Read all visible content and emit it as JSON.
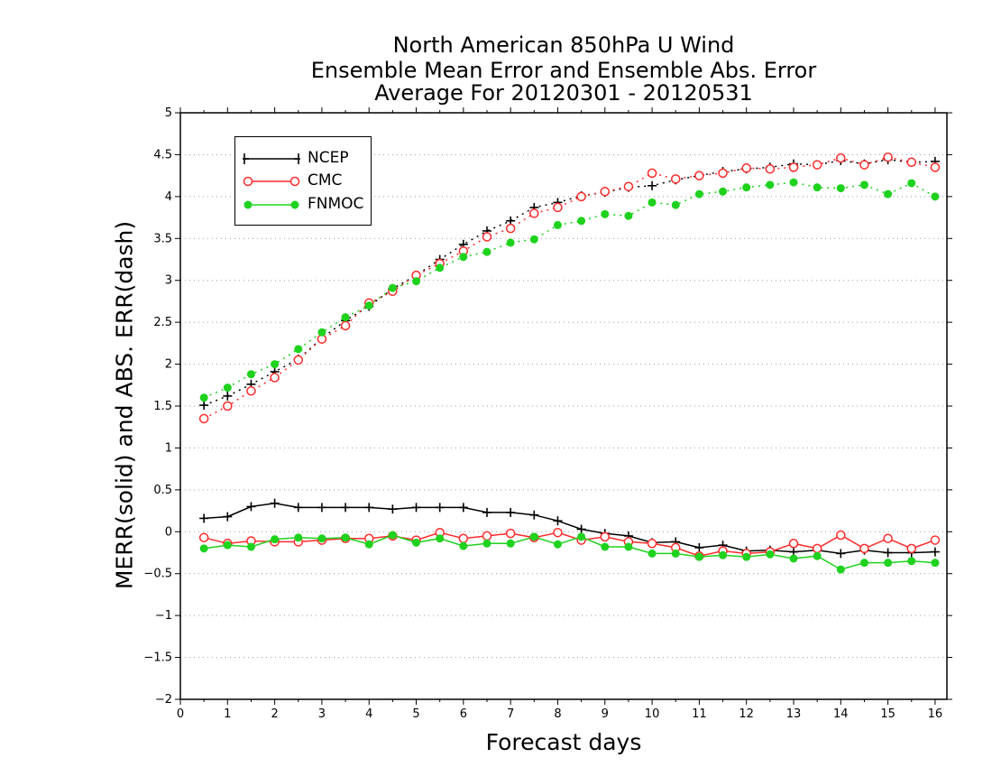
{
  "chart_data": {
    "type": "line",
    "title": [
      "North American 850hPa U Wind",
      "Ensemble Mean Error and Ensemble Abs. Error",
      "Average For 20120301 - 20120531"
    ],
    "xlabel": "Forecast days",
    "ylabel": "MERR(solid) and ABS. ERR(dash)",
    "xlim": [
      0,
      16.25
    ],
    "ylim": [
      -2,
      5
    ],
    "x_ticks": [
      0,
      1,
      2,
      3,
      4,
      5,
      6,
      7,
      8,
      9,
      10,
      11,
      12,
      13,
      14,
      15,
      16
    ],
    "y_ticks": [
      -2,
      -1.5,
      -1,
      -0.5,
      0,
      0.5,
      1,
      1.5,
      2,
      2.5,
      3,
      3.5,
      4,
      4.5,
      5
    ],
    "x_tick_labels": [
      "0",
      "1",
      "2",
      "3",
      "4",
      "5",
      "6",
      "7",
      "8",
      "9",
      "10",
      "11",
      "12",
      "13",
      "14",
      "15",
      "16"
    ],
    "y_tick_labels": [
      "−2",
      "−1.5",
      "−1",
      "−0.5",
      "0",
      "0.5",
      "1",
      "1.5",
      "2",
      "2.5",
      "3",
      "3.5",
      "4",
      "4.5",
      "5"
    ],
    "grid": "horizontal dotted",
    "legend_position": "top-left",
    "x": [
      0.5,
      1,
      1.5,
      2,
      2.5,
      3,
      3.5,
      4,
      4.5,
      5,
      5.5,
      6,
      6.5,
      7,
      7.5,
      8,
      8.5,
      9,
      9.5,
      10,
      10.5,
      11,
      11.5,
      12,
      12.5,
      13,
      13.5,
      14,
      14.5,
      15,
      15.5,
      16
    ],
    "series": [
      {
        "name": "NCEP",
        "color": "#000000",
        "marker": "plus",
        "mean_error": [
          0.16,
          0.18,
          0.3,
          0.34,
          0.29,
          0.29,
          0.29,
          0.29,
          0.27,
          0.29,
          0.29,
          0.29,
          0.23,
          0.23,
          0.2,
          0.13,
          0.03,
          -0.02,
          -0.05,
          -0.13,
          -0.12,
          -0.19,
          -0.16,
          -0.23,
          -0.22,
          -0.24,
          -0.22,
          -0.26,
          -0.22,
          -0.25,
          -0.25,
          -0.24
        ],
        "abs_error": [
          1.51,
          1.62,
          1.76,
          1.91,
          2.06,
          2.31,
          2.52,
          2.69,
          2.9,
          3.06,
          3.25,
          3.43,
          3.59,
          3.71,
          3.87,
          3.93,
          4.01,
          4.05,
          4.11,
          4.13,
          4.2,
          4.25,
          4.3,
          4.33,
          4.35,
          4.39,
          4.38,
          4.43,
          4.39,
          4.44,
          4.41,
          4.42
        ]
      },
      {
        "name": "CMC",
        "color": "#ff2a2a",
        "marker": "open-circle",
        "mean_error": [
          -0.07,
          -0.14,
          -0.11,
          -0.12,
          -0.12,
          -0.1,
          -0.08,
          -0.08,
          -0.05,
          -0.1,
          -0.01,
          -0.08,
          -0.05,
          -0.02,
          -0.07,
          -0.01,
          -0.1,
          -0.06,
          -0.12,
          -0.14,
          -0.19,
          -0.29,
          -0.23,
          -0.26,
          -0.24,
          -0.14,
          -0.2,
          -0.04,
          -0.2,
          -0.08,
          -0.2,
          -0.1
        ],
        "abs_error": [
          1.35,
          1.5,
          1.68,
          1.84,
          2.05,
          2.3,
          2.46,
          2.73,
          2.87,
          3.06,
          3.2,
          3.35,
          3.52,
          3.62,
          3.8,
          3.87,
          4.0,
          4.06,
          4.12,
          4.28,
          4.21,
          4.25,
          4.28,
          4.34,
          4.33,
          4.35,
          4.38,
          4.46,
          4.38,
          4.47,
          4.41,
          4.35
        ]
      },
      {
        "name": "FNMOC",
        "color": "#1ed21e",
        "marker": "filled-circle",
        "mean_error": [
          -0.2,
          -0.16,
          -0.18,
          -0.09,
          -0.07,
          -0.08,
          -0.07,
          -0.15,
          -0.04,
          -0.13,
          -0.08,
          -0.17,
          -0.14,
          -0.14,
          -0.06,
          -0.15,
          -0.06,
          -0.18,
          -0.18,
          -0.26,
          -0.26,
          -0.3,
          -0.28,
          -0.3,
          -0.27,
          -0.32,
          -0.29,
          -0.45,
          -0.37,
          -0.37,
          -0.35,
          -0.37
        ],
        "abs_error": [
          1.6,
          1.72,
          1.88,
          2.0,
          2.18,
          2.38,
          2.56,
          2.7,
          2.91,
          2.99,
          3.15,
          3.28,
          3.34,
          3.45,
          3.49,
          3.66,
          3.71,
          3.79,
          3.77,
          3.93,
          3.9,
          4.03,
          4.06,
          4.11,
          4.14,
          4.17,
          4.11,
          4.1,
          4.14,
          4.03,
          4.16,
          4.0
        ]
      }
    ]
  }
}
